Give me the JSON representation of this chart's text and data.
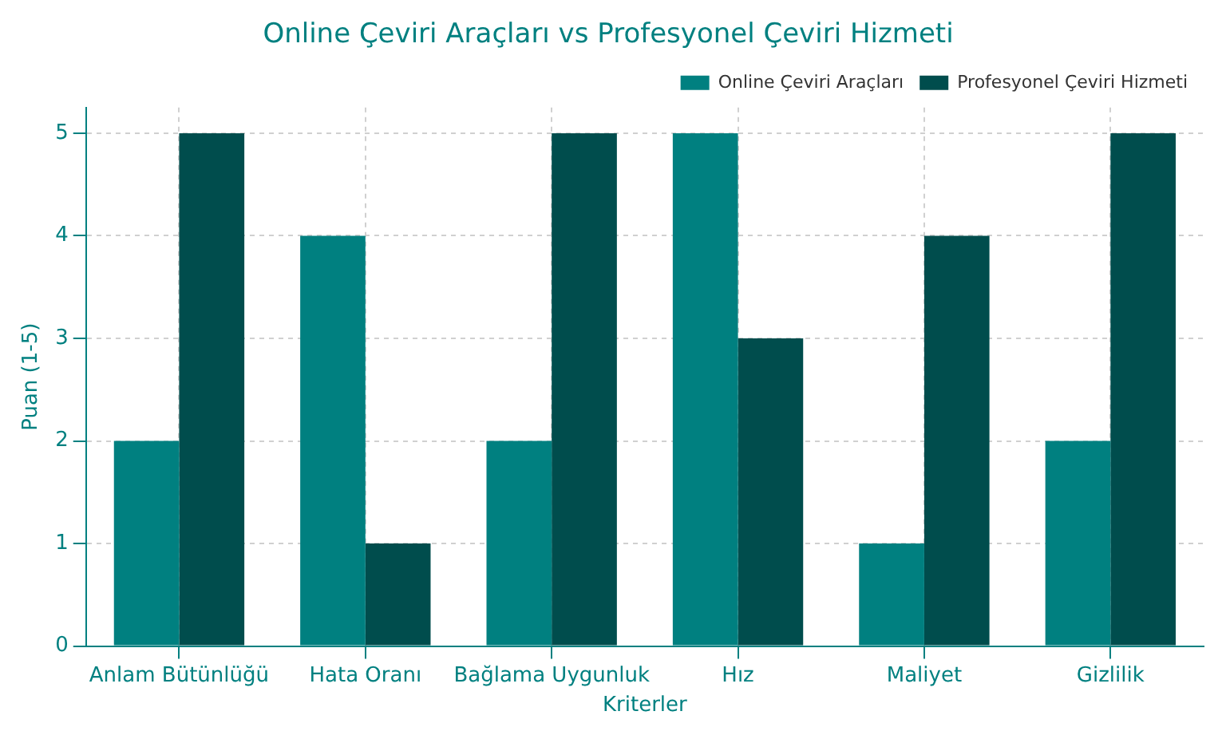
{
  "chart_data": {
    "type": "bar",
    "title": "Online Çeviri Araçları vs Profesyonel Çeviri Hizmeti",
    "xlabel": "Kriterler",
    "ylabel": "Puan (1-5)",
    "categories": [
      "Anlam Bütünlüğü",
      "Hata Oranı",
      "Bağlama Uygunluk",
      "Hız",
      "Maliyet",
      "Gizlilik"
    ],
    "series": [
      {
        "name": "Online Çeviri Araçları",
        "color": "#008080",
        "values": [
          2,
          4,
          2,
          5,
          1,
          2
        ]
      },
      {
        "name": "Profesyonel Çeviri Hizmeti",
        "color": "#004d4d",
        "values": [
          5,
          1,
          5,
          3,
          4,
          5
        ]
      }
    ],
    "ylim": [
      0,
      5.25
    ],
    "yticks": [
      0,
      1,
      2,
      3,
      4,
      5
    ],
    "grid": true,
    "legend": "top right"
  }
}
